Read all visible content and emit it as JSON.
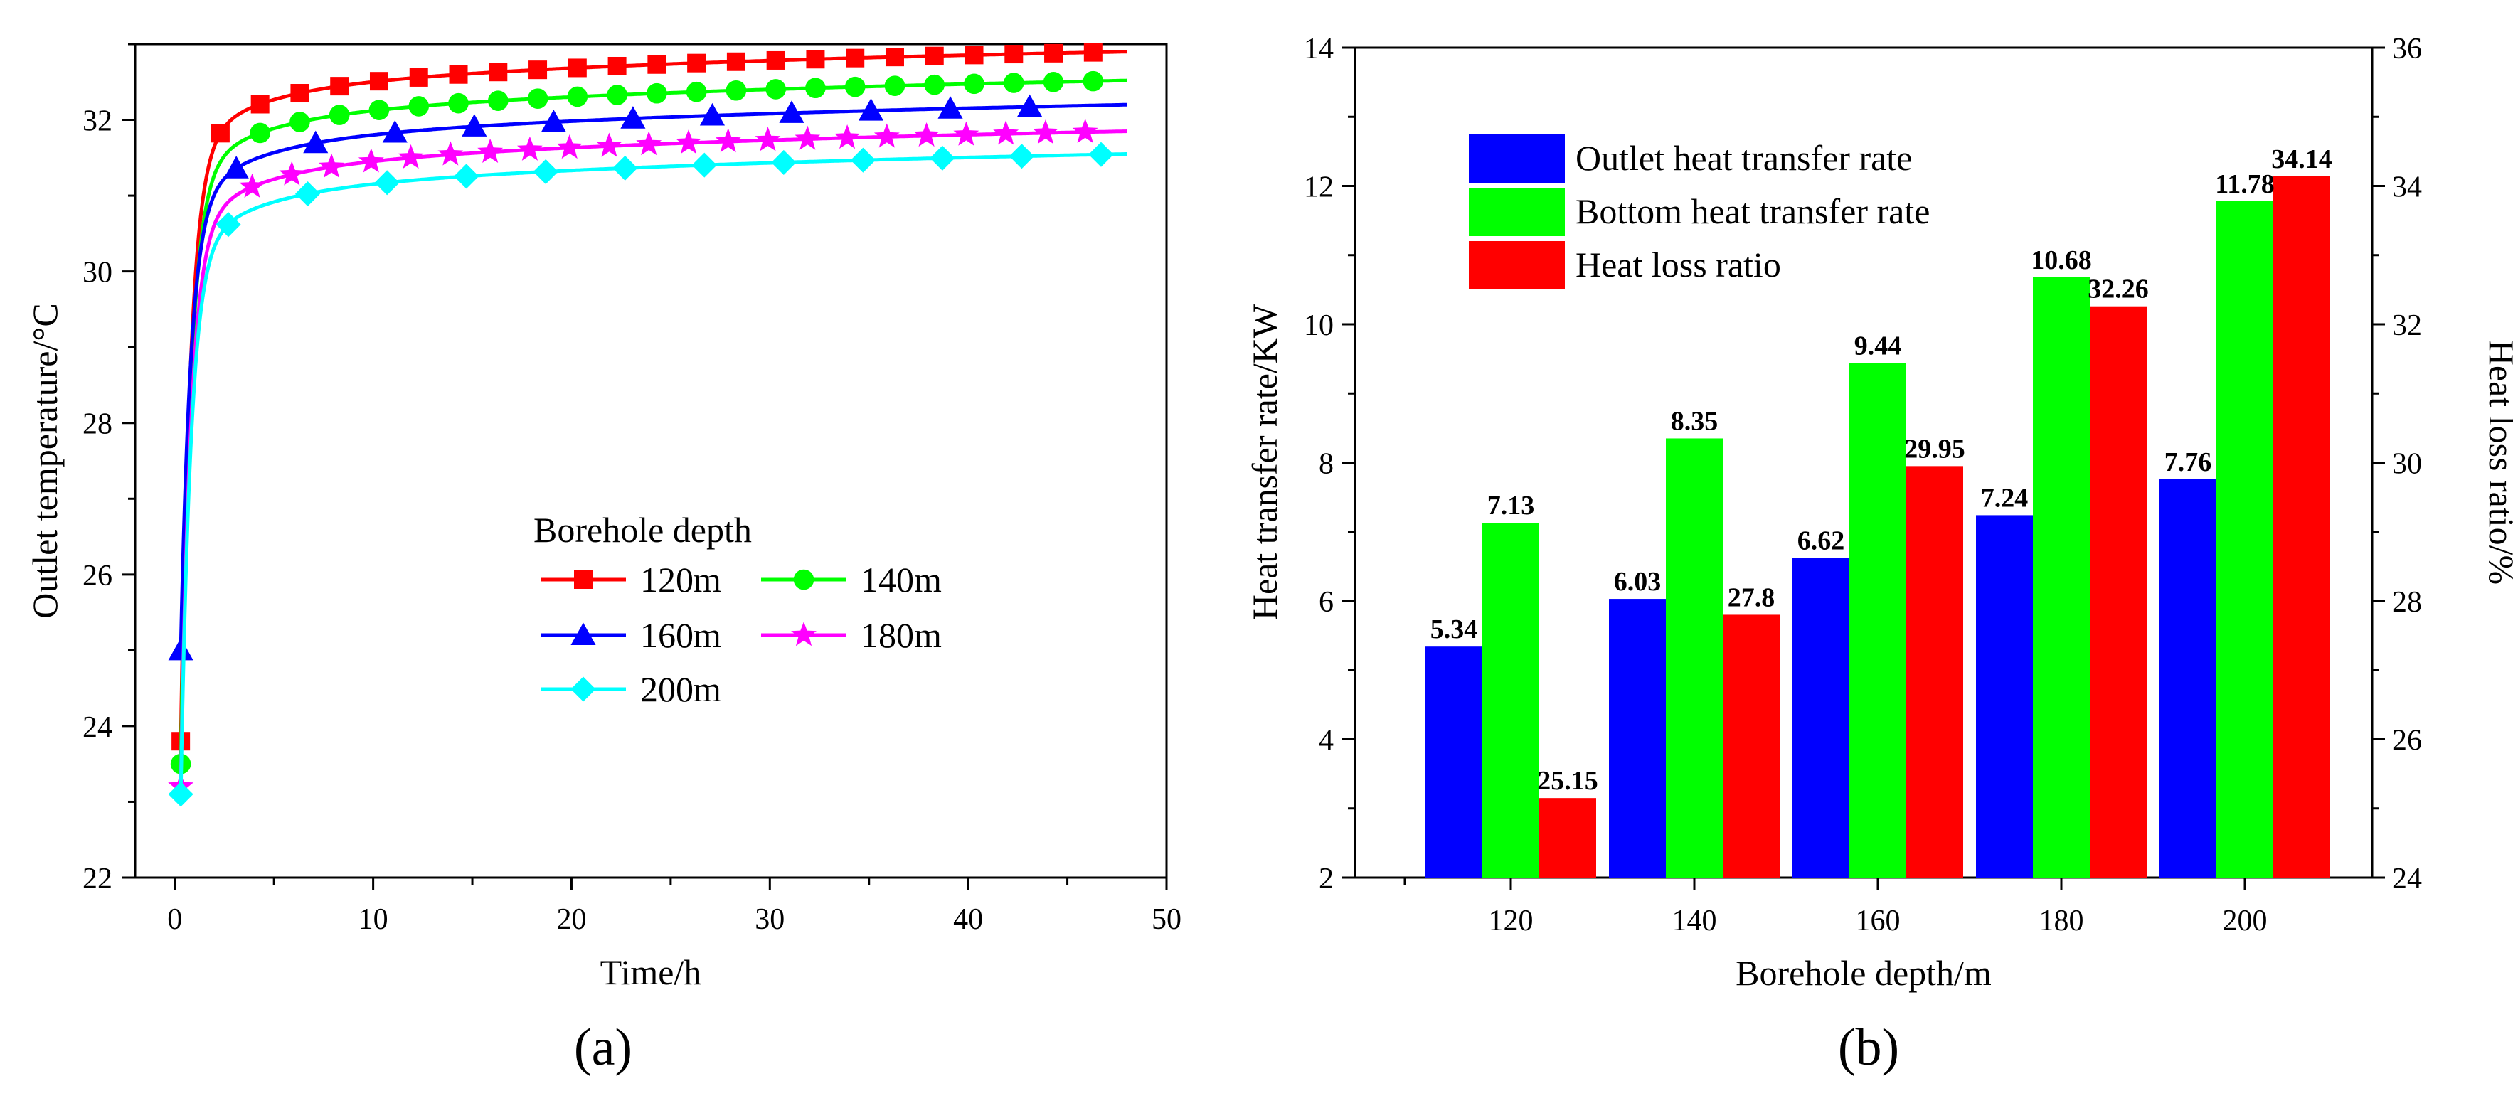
{
  "panels": {
    "a_label": "(a)",
    "b_label": "(b)"
  },
  "chart_data": [
    {
      "type": "line",
      "xlabel": "Time/h",
      "ylabel": "Outlet temperature/°C",
      "xlim": [
        -2,
        50
      ],
      "ylim": [
        22,
        33
      ],
      "xticks": [
        0,
        10,
        20,
        30,
        40,
        50
      ],
      "yticks": [
        22,
        24,
        26,
        28,
        30,
        32
      ],
      "legend_title": "Borehole depth",
      "legend_placement": "center",
      "series": [
        {
          "name": "120m",
          "color": "#ff0000",
          "marker": "square",
          "T0": 23.8,
          "A": 32.9,
          "B": 0.85,
          "tau": 0.5
        },
        {
          "name": "140m",
          "color": "#00ff00",
          "marker": "circle",
          "T0": 23.5,
          "A": 32.52,
          "B": 0.85,
          "tau": 0.5
        },
        {
          "name": "160m",
          "color": "#0000ff",
          "marker": "triangle",
          "T0": 25.0,
          "A": 32.2,
          "B": 0.85,
          "tau": 0.5
        },
        {
          "name": "180m",
          "color": "#ff00ff",
          "marker": "star",
          "T0": 23.2,
          "A": 31.85,
          "B": 0.85,
          "tau": 0.5
        },
        {
          "name": "200m",
          "color": "#00ffff",
          "marker": "diamond",
          "T0": 23.1,
          "A": 31.55,
          "B": 0.85,
          "tau": 0.5
        }
      ]
    },
    {
      "type": "bar",
      "xlabel": "Borehole depth/m",
      "ylabel": "Heat transfer rate/KW",
      "y2label": "Heat loss ratio/%",
      "categories": [
        "120",
        "140",
        "160",
        "180",
        "200"
      ],
      "ylim": [
        2,
        14
      ],
      "yticks": [
        2,
        4,
        6,
        8,
        10,
        12,
        14
      ],
      "y2lim": [
        24,
        36
      ],
      "y2ticks": [
        24,
        26,
        28,
        30,
        32,
        34,
        36
      ],
      "legend_placement": "top-left",
      "series": [
        {
          "name": "Outlet heat transfer rate",
          "color": "#0000ff",
          "axis": "left",
          "values": [
            5.34,
            6.03,
            6.62,
            7.24,
            7.76
          ],
          "labels": [
            "5.34",
            "6.03",
            "6.62",
            "7.24",
            "7.76"
          ]
        },
        {
          "name": "Bottom heat transfer rate",
          "color": "#00ff00",
          "axis": "left",
          "values": [
            7.13,
            8.35,
            9.44,
            10.68,
            11.78
          ],
          "labels": [
            "7.13",
            "8.35",
            "9.44",
            "10.68",
            "11.78"
          ]
        },
        {
          "name": "Heat loss ratio",
          "color": "#ff0000",
          "axis": "right",
          "values": [
            25.15,
            27.8,
            29.95,
            32.26,
            34.14
          ],
          "labels": [
            "25.15",
            "27.8",
            "29.95",
            "32.26",
            "34.14"
          ]
        }
      ]
    }
  ]
}
